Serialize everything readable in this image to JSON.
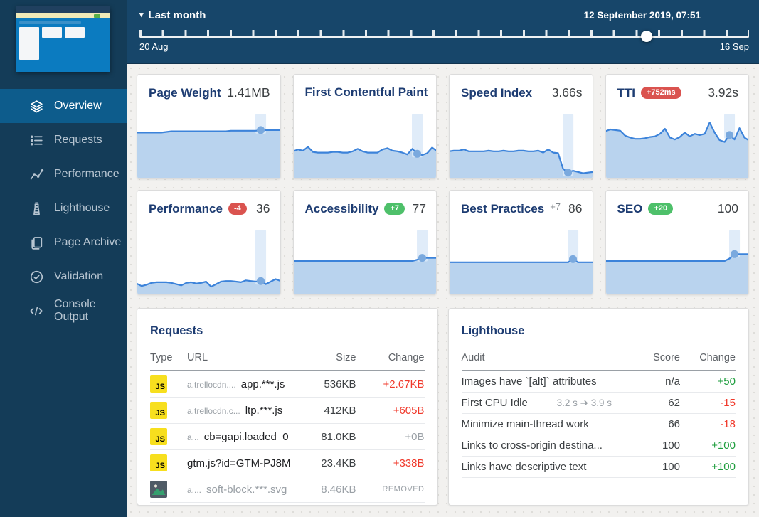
{
  "colors": {
    "sidebar_bg": "#143c58",
    "topbar_bg": "#17466a",
    "active_bg": "#0d5c8c",
    "content_bg": "#f2f1ef",
    "navy": "#1d3c72",
    "line_blue": "#3c83da",
    "fill_blue": "#b9d3ee",
    "band_blue": "#dbe9f8",
    "marker_blue": "#7aa9de",
    "text_dark": "#3c4043",
    "text_gray": "#9aa0a6",
    "red_text": "#f0392b",
    "green_text": "#1e9e3e",
    "badge_red": "#da534f",
    "badge_green": "#4ec06a"
  },
  "sidebar": {
    "items": [
      {
        "label": "Overview",
        "icon": "layers-icon",
        "active": true
      },
      {
        "label": "Requests",
        "icon": "list-icon",
        "active": false
      },
      {
        "label": "Performance",
        "icon": "scatter-icon",
        "active": false
      },
      {
        "label": "Lighthouse",
        "icon": "lighthouse-icon",
        "active": false
      },
      {
        "label": "Page Archive",
        "icon": "pages-icon",
        "active": false
      },
      {
        "label": "Validation",
        "icon": "check-circle-icon",
        "active": false
      },
      {
        "label": "Console Output",
        "icon": "code-icon",
        "active": false
      }
    ]
  },
  "topbar": {
    "range_label": "Last month",
    "date_label": "12 September 2019, 07:51",
    "start_label": "20 Aug",
    "end_label": "16 Sep",
    "slider_position": 0.832
  },
  "metrics": [
    {
      "id": "page-weight",
      "title": "Page Weight",
      "value": "1.41MB",
      "badge": null,
      "spark": {
        "points": [
          70,
          70,
          70,
          70,
          70,
          70,
          71,
          72,
          72,
          72,
          72,
          72,
          72,
          72,
          72,
          72,
          72,
          72,
          72,
          73,
          73,
          73,
          73,
          73,
          73,
          74,
          74,
          74,
          74,
          74
        ],
        "marker": 25
      }
    },
    {
      "id": "first-contentful-paint",
      "title": "First Contentful Paint",
      "value": "",
      "badge": null,
      "spark": {
        "points": [
          40,
          43,
          41,
          47,
          39,
          38,
          38,
          38,
          39,
          39,
          38,
          38,
          40,
          44,
          40,
          38,
          38,
          38,
          43,
          45,
          41,
          40,
          38,
          35,
          44,
          36,
          34,
          37,
          46,
          40
        ],
        "marker": 25
      }
    },
    {
      "id": "speed-index",
      "title": "Speed Index",
      "value": "3.66s",
      "badge": null,
      "spark": {
        "points": [
          40,
          41,
          41,
          43,
          40,
          40,
          40,
          40,
          41,
          40,
          40,
          41,
          40,
          40,
          41,
          41,
          40,
          40,
          41,
          38,
          43,
          38,
          37,
          12,
          6,
          9,
          7,
          5,
          6,
          7
        ],
        "marker": 24
      }
    },
    {
      "id": "tti",
      "title": "TTI",
      "value": "3.92s",
      "badge": {
        "text": "+752ms",
        "type": "red"
      },
      "spark": {
        "points": [
          72,
          75,
          74,
          73,
          65,
          62,
          60,
          60,
          61,
          63,
          64,
          68,
          76,
          62,
          59,
          63,
          70,
          64,
          68,
          66,
          68,
          86,
          70,
          58,
          55,
          66,
          59,
          77,
          62,
          57
        ],
        "marker": 25
      }
    },
    {
      "id": "performance",
      "title": "Performance",
      "value": "36",
      "badge": {
        "text": "-4",
        "type": "red"
      },
      "spark": {
        "points": [
          14,
          10,
          12,
          15,
          16,
          16,
          16,
          15,
          13,
          11,
          15,
          16,
          14,
          15,
          17,
          9,
          13,
          17,
          18,
          18,
          17,
          16,
          19,
          18,
          17,
          18,
          13,
          17,
          21,
          18
        ],
        "marker": 25
      }
    },
    {
      "id": "accessibility",
      "title": "Accessibility",
      "value": "77",
      "badge": {
        "text": "+7",
        "type": "green"
      },
      "spark": {
        "points": [
          50,
          50,
          50,
          50,
          50,
          50,
          50,
          50,
          50,
          50,
          50,
          50,
          50,
          50,
          50,
          50,
          50,
          50,
          50,
          50,
          50,
          50,
          50,
          50,
          50,
          52,
          55,
          55,
          55,
          55
        ],
        "marker": 26
      }
    },
    {
      "id": "best-practices",
      "title": "Best Practices",
      "value": "86",
      "badge": {
        "text": "+7",
        "type": "plain"
      },
      "spark": {
        "points": [
          48,
          48,
          48,
          48,
          48,
          48,
          48,
          48,
          48,
          48,
          48,
          48,
          48,
          48,
          48,
          48,
          48,
          48,
          48,
          48,
          48,
          48,
          48,
          48,
          48,
          53,
          48,
          48,
          48,
          48
        ],
        "marker": 25
      }
    },
    {
      "id": "seo",
      "title": "SEO",
      "value": "100",
      "badge": {
        "text": "+20",
        "type": "green"
      },
      "spark": {
        "points": [
          50,
          50,
          50,
          50,
          50,
          50,
          50,
          50,
          50,
          50,
          50,
          50,
          50,
          50,
          50,
          50,
          50,
          50,
          50,
          50,
          50,
          50,
          50,
          50,
          50,
          54,
          61,
          61,
          61,
          61
        ],
        "marker": 26
      }
    }
  ],
  "requests_table": {
    "title": "Requests",
    "columns": [
      "Type",
      "URL",
      "Size",
      "Change"
    ],
    "rows": [
      {
        "type_icon": "js-icon",
        "url_prefix": "a.trellocdn....",
        "url_main": "app.***.js",
        "size": "536KB",
        "change": "+2.67KB",
        "change_class": "red",
        "muted": false
      },
      {
        "type_icon": "js-icon",
        "url_prefix": "a.trellocdn.c...",
        "url_main": "ltp.***.js",
        "size": "412KB",
        "change": "+605B",
        "change_class": "red",
        "muted": false
      },
      {
        "type_icon": "js-icon",
        "url_prefix": "a...",
        "url_main": "cb=gapi.loaded_0",
        "size": "81.0KB",
        "change": "+0B",
        "change_class": "gray",
        "muted": false
      },
      {
        "type_icon": "js-icon",
        "url_prefix": "",
        "url_main": "gtm.js?id=GTM-PJ8M",
        "size": "23.4KB",
        "change": "+338B",
        "change_class": "red",
        "muted": false
      },
      {
        "type_icon": "image-icon",
        "url_prefix": "a....",
        "url_main": "soft-block.***.svg",
        "size": "8.46KB",
        "change": "REMOVED",
        "change_class": "removed",
        "muted": true
      }
    ]
  },
  "lighthouse_table": {
    "title": "Lighthouse",
    "columns": [
      "Audit",
      "Score",
      "Change"
    ],
    "rows": [
      {
        "audit": "Images have `[alt]` attributes",
        "detail": "",
        "score": "n/a",
        "change": "+50",
        "change_class": "green"
      },
      {
        "audit": "First CPU Idle",
        "detail": "3.2 s ➔ 3.9 s",
        "score": "62",
        "change": "-15",
        "change_class": "red"
      },
      {
        "audit": "Minimize main-thread work",
        "detail": "",
        "score": "66",
        "change": "-18",
        "change_class": "red"
      },
      {
        "audit": "Links to cross-origin destina...",
        "detail": "",
        "score": "100",
        "change": "+100",
        "change_class": "green"
      },
      {
        "audit": "Links have descriptive text",
        "detail": "",
        "score": "100",
        "change": "+100",
        "change_class": "green"
      }
    ]
  }
}
